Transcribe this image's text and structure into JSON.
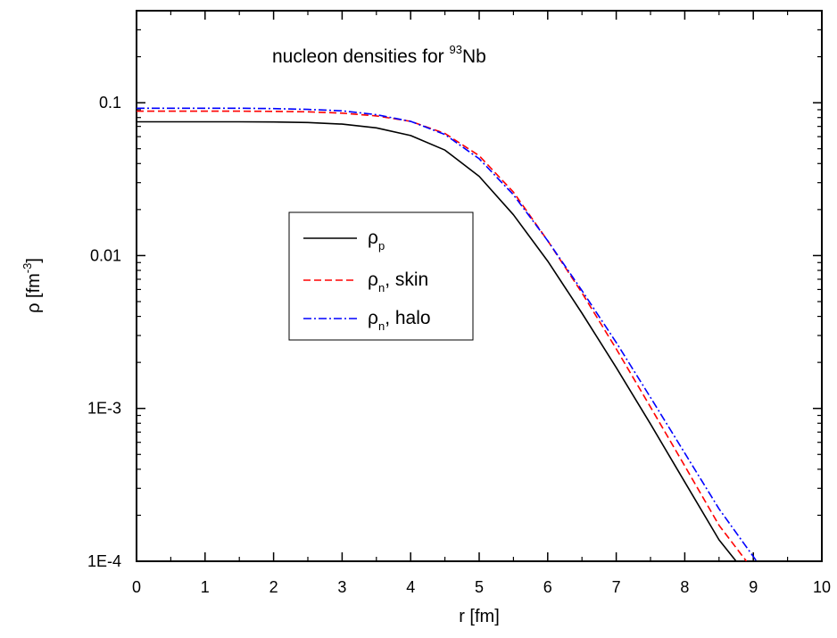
{
  "chart_data": {
    "type": "line",
    "title": {
      "prefix": "nucleon densities for ",
      "superscript": "93",
      "suffix": "Nb"
    },
    "xlabel": "r [fm]",
    "ylabel": {
      "prefix": "ρ [fm",
      "superscript": "-3",
      "suffix": "]"
    },
    "xlim": [
      0,
      10
    ],
    "ylim": [
      0.0001,
      0.4
    ],
    "yscale": "log",
    "x_ticks": [
      "0",
      "1",
      "2",
      "3",
      "4",
      "5",
      "6",
      "7",
      "8",
      "9",
      "10"
    ],
    "y_ticks": [
      {
        "value": 0.1,
        "label": "0.1"
      },
      {
        "value": 0.01,
        "label": "0.01"
      },
      {
        "value": 0.001,
        "label": "1E-3"
      },
      {
        "value": 0.0001,
        "label": "1E-4"
      }
    ],
    "grid": false,
    "legend_position": "center-left",
    "series": [
      {
        "name": {
          "base": "ρ",
          "sub": "p",
          "suffix": ""
        },
        "color": "#000000",
        "style": "solid",
        "points": [
          [
            0,
            0.075
          ],
          [
            0.5,
            0.075
          ],
          [
            1,
            0.075
          ],
          [
            1.5,
            0.075
          ],
          [
            2,
            0.0748
          ],
          [
            2.5,
            0.0742
          ],
          [
            3,
            0.0725
          ],
          [
            3.5,
            0.0685
          ],
          [
            4,
            0.061
          ],
          [
            4.5,
            0.049
          ],
          [
            5,
            0.033
          ],
          [
            5.5,
            0.0185
          ],
          [
            6,
            0.0092
          ],
          [
            6.5,
            0.0042
          ],
          [
            7,
            0.00185
          ],
          [
            7.5,
            0.00079
          ],
          [
            8,
            0.00033
          ],
          [
            8.5,
            0.000138
          ],
          [
            8.75,
            0.0001
          ]
        ]
      },
      {
        "name": {
          "base": "ρ",
          "sub": "n",
          "suffix": ", skin"
        },
        "color": "#ff0000",
        "style": "dashed",
        "points": [
          [
            0,
            0.088
          ],
          [
            0.5,
            0.088
          ],
          [
            1,
            0.088
          ],
          [
            1.5,
            0.088
          ],
          [
            2,
            0.0878
          ],
          [
            2.5,
            0.0872
          ],
          [
            3,
            0.0855
          ],
          [
            3.5,
            0.082
          ],
          [
            4,
            0.0755
          ],
          [
            4.5,
            0.063
          ],
          [
            5,
            0.045
          ],
          [
            5.5,
            0.026
          ],
          [
            6,
            0.0125
          ],
          [
            6.5,
            0.0057
          ],
          [
            7,
            0.00245
          ],
          [
            7.5,
            0.00102
          ],
          [
            8,
            0.00042
          ],
          [
            8.5,
            0.000172
          ],
          [
            8.9,
            0.0001
          ]
        ]
      },
      {
        "name": {
          "base": "ρ",
          "sub": "n",
          "suffix": ", halo"
        },
        "color": "#0000ff",
        "style": "dashdot",
        "points": [
          [
            0,
            0.092
          ],
          [
            0.5,
            0.092
          ],
          [
            1,
            0.092
          ],
          [
            1.5,
            0.092
          ],
          [
            2,
            0.0915
          ],
          [
            2.5,
            0.0905
          ],
          [
            3,
            0.0885
          ],
          [
            3.5,
            0.0835
          ],
          [
            4,
            0.0755
          ],
          [
            4.5,
            0.062
          ],
          [
            5,
            0.043
          ],
          [
            5.5,
            0.025
          ],
          [
            6,
            0.0125
          ],
          [
            6.5,
            0.0059
          ],
          [
            7,
            0.0027
          ],
          [
            7.5,
            0.00118
          ],
          [
            8,
            0.00051
          ],
          [
            8.5,
            0.00022
          ],
          [
            9.05,
            0.0001
          ]
        ]
      }
    ]
  }
}
